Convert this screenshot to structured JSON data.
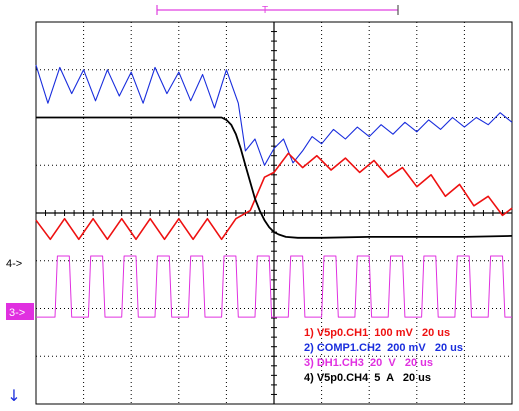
{
  "chart_data": {
    "type": "line",
    "title": "",
    "xlabel": "",
    "ylabel": "",
    "grid": true,
    "x_divisions": 10,
    "y_divisions": 8,
    "xlim": [
      0,
      10
    ],
    "ylim": [
      0,
      8
    ],
    "colors": {
      "background": "#ffffff",
      "grid": "#000000",
      "trigger_bar": "#e040e0",
      "ch1": "#ee1111",
      "ch2": "#1a2edd",
      "ch3": "#e030e0",
      "ch4": "#000000"
    },
    "series": [
      {
        "key": "ch1",
        "x": [
          0,
          0.3,
          0.6,
          0.9,
          1.2,
          1.5,
          1.8,
          2.1,
          2.4,
          2.7,
          3.0,
          3.3,
          3.6,
          3.9,
          4.2,
          4.5,
          4.8,
          5.0,
          5.3,
          5.6,
          5.9,
          6.2,
          6.5,
          6.8,
          7.1,
          7.4,
          7.7,
          8.0,
          8.3,
          8.6,
          8.9,
          9.2,
          9.5,
          9.8,
          10.0
        ],
        "values": [
          3.85,
          3.45,
          3.88,
          3.45,
          3.88,
          3.45,
          3.88,
          3.45,
          3.88,
          3.45,
          3.88,
          3.45,
          3.88,
          3.45,
          3.88,
          4.05,
          4.75,
          4.85,
          5.25,
          4.95,
          5.2,
          4.9,
          5.15,
          4.85,
          5.1,
          4.75,
          4.95,
          4.55,
          4.8,
          4.35,
          4.6,
          4.15,
          4.35,
          3.95,
          4.1
        ]
      },
      {
        "key": "ch2",
        "x": [
          0,
          0.25,
          0.5,
          0.75,
          1.0,
          1.25,
          1.5,
          1.75,
          2.0,
          2.25,
          2.5,
          2.75,
          3.0,
          3.25,
          3.5,
          3.75,
          4.0,
          4.25,
          4.4,
          4.6,
          4.8,
          5.0,
          5.2,
          5.4,
          5.6,
          5.8,
          6.0,
          6.25,
          6.5,
          6.75,
          7.0,
          7.25,
          7.5,
          7.75,
          8.0,
          8.25,
          8.5,
          8.75,
          9.0,
          9.25,
          9.5,
          9.75,
          10.0
        ],
        "values": [
          7.1,
          6.3,
          7.05,
          6.5,
          7.0,
          6.35,
          7.0,
          6.45,
          6.95,
          6.3,
          7.05,
          6.5,
          6.95,
          6.35,
          6.9,
          6.2,
          7.0,
          6.3,
          5.3,
          5.55,
          5.0,
          5.35,
          5.55,
          5.05,
          5.3,
          5.6,
          5.45,
          5.75,
          5.55,
          5.8,
          5.6,
          5.85,
          5.65,
          5.9,
          5.7,
          5.95,
          5.75,
          6.0,
          5.8,
          6.0,
          5.85,
          6.1,
          5.9
        ]
      },
      {
        "key": "ch3",
        "x": [
          0,
          0.4,
          0.45,
          0.7,
          0.75,
          1.1,
          1.15,
          1.4,
          1.45,
          1.8,
          1.85,
          2.1,
          2.15,
          2.5,
          2.55,
          2.8,
          2.85,
          3.2,
          3.25,
          3.5,
          3.55,
          3.9,
          3.95,
          4.2,
          4.25,
          4.6,
          4.65,
          4.9,
          4.95,
          5.3,
          5.35,
          5.6,
          5.65,
          6.0,
          6.05,
          6.3,
          6.35,
          6.7,
          6.75,
          7.0,
          7.05,
          7.4,
          7.45,
          7.7,
          7.75,
          8.1,
          8.15,
          8.4,
          8.45,
          8.8,
          8.85,
          9.1,
          9.15,
          9.5,
          9.55,
          9.8,
          9.85,
          10.0
        ],
        "values": [
          1.82,
          1.82,
          3.1,
          3.1,
          1.82,
          1.82,
          3.1,
          3.1,
          1.82,
          1.82,
          3.1,
          3.1,
          1.82,
          1.82,
          3.1,
          3.1,
          1.82,
          1.82,
          3.1,
          3.1,
          1.82,
          1.82,
          3.1,
          3.1,
          1.82,
          1.82,
          3.1,
          3.1,
          1.82,
          1.82,
          3.1,
          3.1,
          1.82,
          1.82,
          3.1,
          3.1,
          1.82,
          1.82,
          3.1,
          3.1,
          1.82,
          1.82,
          3.1,
          3.1,
          1.82,
          1.82,
          3.1,
          3.1,
          1.82,
          1.82,
          3.1,
          3.1,
          1.82,
          1.82,
          3.1,
          3.1,
          1.82,
          1.82
        ]
      },
      {
        "key": "ch4",
        "x": [
          0,
          0.5,
          1.0,
          1.5,
          2.0,
          2.5,
          3.0,
          3.5,
          3.9,
          4.0,
          4.1,
          4.2,
          4.3,
          4.4,
          4.5,
          4.6,
          4.7,
          4.8,
          4.9,
          5.0,
          5.1,
          5.25,
          5.5,
          6.0,
          7.0,
          8.0,
          9.0,
          10.0
        ],
        "values": [
          6.0,
          6.0,
          6.0,
          6.0,
          6.0,
          6.0,
          6.0,
          6.0,
          6.0,
          5.95,
          5.85,
          5.65,
          5.35,
          5.0,
          4.65,
          4.3,
          4.05,
          3.85,
          3.7,
          3.6,
          3.55,
          3.5,
          3.48,
          3.48,
          3.5,
          3.5,
          3.5,
          3.52
        ]
      }
    ]
  },
  "markers": {
    "ch4_marker": "4->",
    "ch3_marker": "3->",
    "trigger_label": "T",
    "trigger_pos_arrow": "↓"
  },
  "legend": [
    {
      "text": "1) V5p0.CH1  100 mV   20 us",
      "color": "#ee1111"
    },
    {
      "text": "2) COMP1.CH2  200 mV   20 us",
      "color": "#1a2edd"
    },
    {
      "text": "3) DH1.CH3  20  V   20 us",
      "color": "#e030e0"
    },
    {
      "text": "4) V5p0.CH4  5  A   20 us",
      "color": "#000000"
    }
  ]
}
